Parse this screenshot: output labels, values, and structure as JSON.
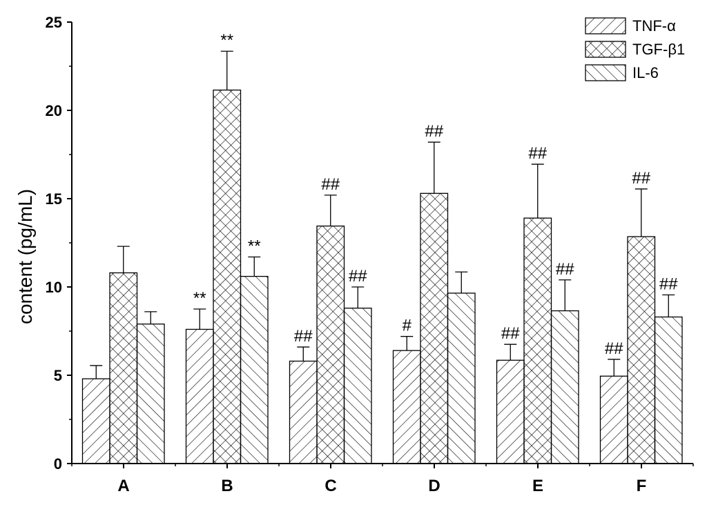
{
  "chart_data": {
    "type": "bar",
    "ylabel": "content (pg/mL)",
    "xlabel": "",
    "ylim": [
      0,
      25
    ],
    "yticks": [
      0,
      5,
      10,
      15,
      20,
      25
    ],
    "categories": [
      "A",
      "B",
      "C",
      "D",
      "E",
      "F"
    ],
    "legend_position": "top-right",
    "grid": false,
    "series": [
      {
        "name": "TNF-α",
        "pattern": "forward-hatch",
        "values": [
          4.8,
          7.6,
          5.8,
          6.4,
          5.85,
          4.95
        ],
        "errors": [
          0.75,
          1.15,
          0.8,
          0.8,
          0.9,
          0.95
        ],
        "annotations": [
          "",
          "**",
          "##",
          "#",
          "##",
          "##"
        ]
      },
      {
        "name": "TGF-β1",
        "pattern": "cross-hatch",
        "values": [
          10.8,
          21.15,
          13.45,
          15.3,
          13.9,
          12.85
        ],
        "errors": [
          1.5,
          2.2,
          1.75,
          2.9,
          3.05,
          2.7
        ],
        "annotations": [
          "",
          "**",
          "##",
          "##",
          "##",
          "##"
        ]
      },
      {
        "name": "IL-6",
        "pattern": "back-hatch",
        "values": [
          7.9,
          10.6,
          8.8,
          9.65,
          8.65,
          8.3
        ],
        "errors": [
          0.7,
          1.1,
          1.2,
          1.2,
          1.75,
          1.25
        ],
        "annotations": [
          "",
          "**",
          "##",
          "",
          "##",
          "##"
        ]
      }
    ]
  }
}
